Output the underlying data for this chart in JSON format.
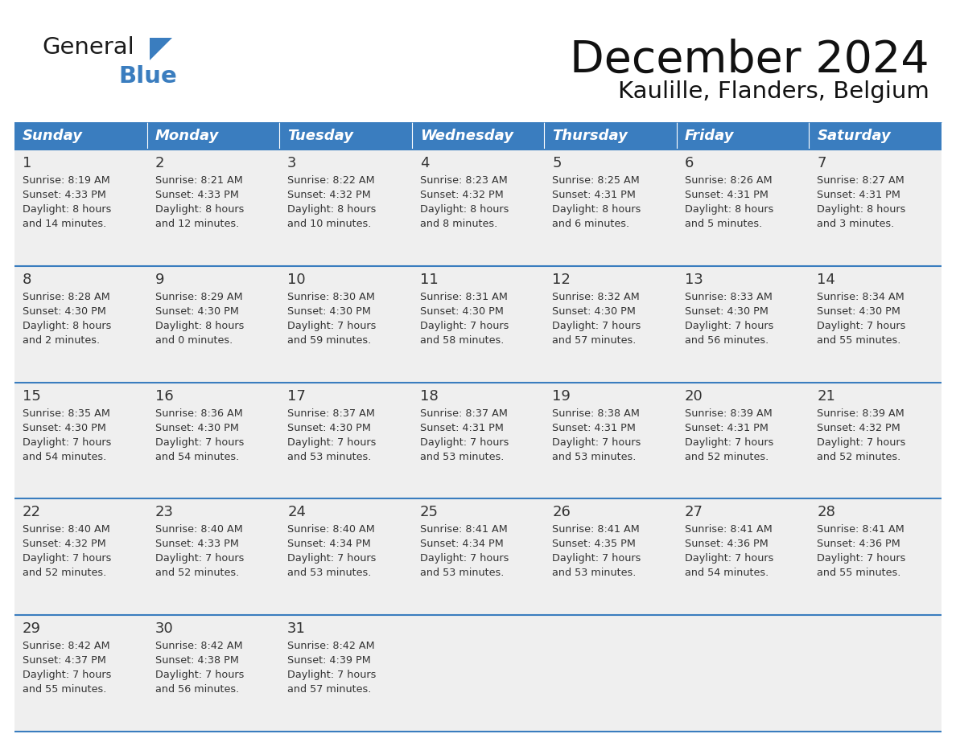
{
  "title": "December 2024",
  "subtitle": "Kaulille, Flanders, Belgium",
  "header_color": "#3a7dbf",
  "header_text_color": "#ffffff",
  "cell_bg_color": "#efefef",
  "border_color": "#3a7dbf",
  "text_color": "#444444",
  "days_of_week": [
    "Sunday",
    "Monday",
    "Tuesday",
    "Wednesday",
    "Thursday",
    "Friday",
    "Saturday"
  ],
  "weeks": [
    [
      {
        "day": 1,
        "sunrise": "8:19 AM",
        "sunset": "4:33 PM",
        "dl1": "8 hours",
        "dl2": "and 14 minutes."
      },
      {
        "day": 2,
        "sunrise": "8:21 AM",
        "sunset": "4:33 PM",
        "dl1": "8 hours",
        "dl2": "and 12 minutes."
      },
      {
        "day": 3,
        "sunrise": "8:22 AM",
        "sunset": "4:32 PM",
        "dl1": "8 hours",
        "dl2": "and 10 minutes."
      },
      {
        "day": 4,
        "sunrise": "8:23 AM",
        "sunset": "4:32 PM",
        "dl1": "8 hours",
        "dl2": "and 8 minutes."
      },
      {
        "day": 5,
        "sunrise": "8:25 AM",
        "sunset": "4:31 PM",
        "dl1": "8 hours",
        "dl2": "and 6 minutes."
      },
      {
        "day": 6,
        "sunrise": "8:26 AM",
        "sunset": "4:31 PM",
        "dl1": "8 hours",
        "dl2": "and 5 minutes."
      },
      {
        "day": 7,
        "sunrise": "8:27 AM",
        "sunset": "4:31 PM",
        "dl1": "8 hours",
        "dl2": "and 3 minutes."
      }
    ],
    [
      {
        "day": 8,
        "sunrise": "8:28 AM",
        "sunset": "4:30 PM",
        "dl1": "8 hours",
        "dl2": "and 2 minutes."
      },
      {
        "day": 9,
        "sunrise": "8:29 AM",
        "sunset": "4:30 PM",
        "dl1": "8 hours",
        "dl2": "and 0 minutes."
      },
      {
        "day": 10,
        "sunrise": "8:30 AM",
        "sunset": "4:30 PM",
        "dl1": "7 hours",
        "dl2": "and 59 minutes."
      },
      {
        "day": 11,
        "sunrise": "8:31 AM",
        "sunset": "4:30 PM",
        "dl1": "7 hours",
        "dl2": "and 58 minutes."
      },
      {
        "day": 12,
        "sunrise": "8:32 AM",
        "sunset": "4:30 PM",
        "dl1": "7 hours",
        "dl2": "and 57 minutes."
      },
      {
        "day": 13,
        "sunrise": "8:33 AM",
        "sunset": "4:30 PM",
        "dl1": "7 hours",
        "dl2": "and 56 minutes."
      },
      {
        "day": 14,
        "sunrise": "8:34 AM",
        "sunset": "4:30 PM",
        "dl1": "7 hours",
        "dl2": "and 55 minutes."
      }
    ],
    [
      {
        "day": 15,
        "sunrise": "8:35 AM",
        "sunset": "4:30 PM",
        "dl1": "7 hours",
        "dl2": "and 54 minutes."
      },
      {
        "day": 16,
        "sunrise": "8:36 AM",
        "sunset": "4:30 PM",
        "dl1": "7 hours",
        "dl2": "and 54 minutes."
      },
      {
        "day": 17,
        "sunrise": "8:37 AM",
        "sunset": "4:30 PM",
        "dl1": "7 hours",
        "dl2": "and 53 minutes."
      },
      {
        "day": 18,
        "sunrise": "8:37 AM",
        "sunset": "4:31 PM",
        "dl1": "7 hours",
        "dl2": "and 53 minutes."
      },
      {
        "day": 19,
        "sunrise": "8:38 AM",
        "sunset": "4:31 PM",
        "dl1": "7 hours",
        "dl2": "and 53 minutes."
      },
      {
        "day": 20,
        "sunrise": "8:39 AM",
        "sunset": "4:31 PM",
        "dl1": "7 hours",
        "dl2": "and 52 minutes."
      },
      {
        "day": 21,
        "sunrise": "8:39 AM",
        "sunset": "4:32 PM",
        "dl1": "7 hours",
        "dl2": "and 52 minutes."
      }
    ],
    [
      {
        "day": 22,
        "sunrise": "8:40 AM",
        "sunset": "4:32 PM",
        "dl1": "7 hours",
        "dl2": "and 52 minutes."
      },
      {
        "day": 23,
        "sunrise": "8:40 AM",
        "sunset": "4:33 PM",
        "dl1": "7 hours",
        "dl2": "and 52 minutes."
      },
      {
        "day": 24,
        "sunrise": "8:40 AM",
        "sunset": "4:34 PM",
        "dl1": "7 hours",
        "dl2": "and 53 minutes."
      },
      {
        "day": 25,
        "sunrise": "8:41 AM",
        "sunset": "4:34 PM",
        "dl1": "7 hours",
        "dl2": "and 53 minutes."
      },
      {
        "day": 26,
        "sunrise": "8:41 AM",
        "sunset": "4:35 PM",
        "dl1": "7 hours",
        "dl2": "and 53 minutes."
      },
      {
        "day": 27,
        "sunrise": "8:41 AM",
        "sunset": "4:36 PM",
        "dl1": "7 hours",
        "dl2": "and 54 minutes."
      },
      {
        "day": 28,
        "sunrise": "8:41 AM",
        "sunset": "4:36 PM",
        "dl1": "7 hours",
        "dl2": "and 55 minutes."
      }
    ],
    [
      {
        "day": 29,
        "sunrise": "8:42 AM",
        "sunset": "4:37 PM",
        "dl1": "7 hours",
        "dl2": "and 55 minutes."
      },
      {
        "day": 30,
        "sunrise": "8:42 AM",
        "sunset": "4:38 PM",
        "dl1": "7 hours",
        "dl2": "and 56 minutes."
      },
      {
        "day": 31,
        "sunrise": "8:42 AM",
        "sunset": "4:39 PM",
        "dl1": "7 hours",
        "dl2": "and 57 minutes."
      },
      null,
      null,
      null,
      null
    ]
  ]
}
